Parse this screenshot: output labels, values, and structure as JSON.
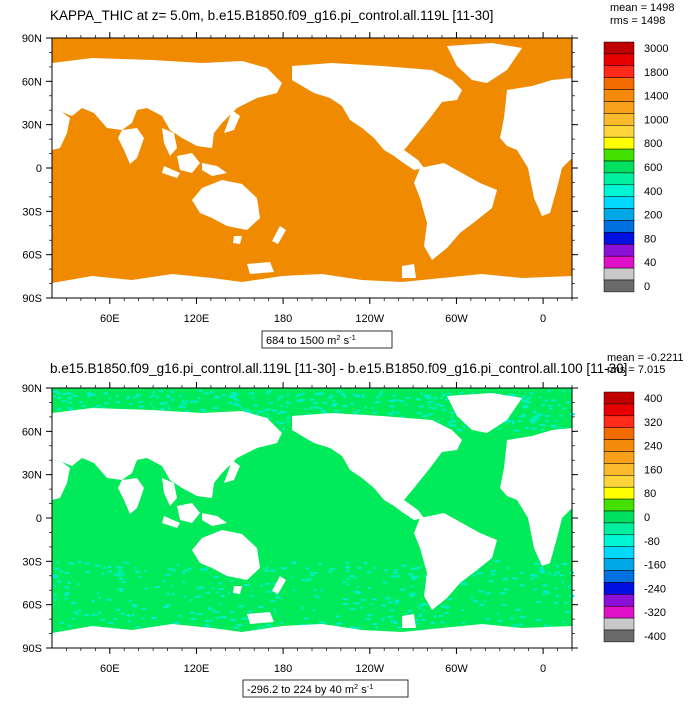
{
  "plots": [
    {
      "title": "KAPPA_THIC at z=   5.0m, b.e15.B1850.f09_g16.pi_control.all.119L [11-30]",
      "stat_mean": "mean = 1498",
      "stat_rms": "rms = 1498",
      "range_text": "684 to 1500 m",
      "range_unit_sup": "2",
      "range_unit_tail": " s",
      "range_unit_sup2": "-1",
      "colorbar_labels": [
        "3000",
        "1800",
        "1400",
        "1000",
        "800",
        "600",
        "400",
        "200",
        "80",
        "40",
        "0"
      ],
      "colorbar_colors": [
        "#c00000",
        "#e60000",
        "#ff2a1a",
        "#f26a00",
        "#f58a0a",
        "#f8a01a",
        "#fbba2c",
        "#fdd43a",
        "#ffff00",
        "#44e000",
        "#00e060",
        "#00f0a0",
        "#00f5d5",
        "#00d8ff",
        "#00a8e8",
        "#0070e0",
        "#0010e0",
        "#8a10d8",
        "#e010c8",
        "#c8c8c8",
        "#6a6a6a"
      ],
      "ocean_color": "#f08a00"
    },
    {
      "title": "b.e15.B1850.f09_g16.pi_control.all.119L [11-30] - b.e15.B1850.f09_g16.pi_control.all.100 [11-30]",
      "stat_mean": "mean = -0.2211",
      "stat_rms": "rms = 7.015",
      "range_text": "-296.2 to 224 by 40 m",
      "range_unit_sup": "2",
      "range_unit_tail": " s",
      "range_unit_sup2": "-1",
      "colorbar_labels": [
        "400",
        "320",
        "240",
        "160",
        "80",
        "0",
        "-80",
        "-160",
        "-240",
        "-320",
        "-400"
      ],
      "colorbar_colors": [
        "#c00000",
        "#e60000",
        "#ff2a1a",
        "#f26a00",
        "#f58a0a",
        "#f8a01a",
        "#fbba2c",
        "#fdd43a",
        "#ffff00",
        "#44e000",
        "#00e060",
        "#00f0a0",
        "#00f5d5",
        "#00d8ff",
        "#00a8e8",
        "#0070e0",
        "#0010e0",
        "#8a10d8",
        "#e010c8",
        "#c8c8c8",
        "#6a6a6a"
      ],
      "ocean_color": "#00ea5a",
      "noise_color": "#00f0c8"
    }
  ],
  "chart_data": [
    {
      "type": "heatmap",
      "title": "KAPPA_THIC at z=   5.0m, b.e15.B1850.f09_g16.pi_control.all.119L [11-30]",
      "projection": "cylindrical equidistant, centered 200E",
      "x_ticks": [
        "60E",
        "120E",
        "180",
        "120W",
        "60W",
        "0"
      ],
      "y_ticks": [
        "90N",
        "60N",
        "30N",
        "0",
        "30S",
        "60S",
        "90S"
      ],
      "mean": 1498,
      "rms": 1498,
      "min": 684,
      "max": 1500,
      "units": "m2 s-1",
      "levels": [
        0,
        40,
        80,
        200,
        400,
        600,
        800,
        1000,
        1400,
        1800,
        3000
      ],
      "dominant_value_range": "1400-1800"
    },
    {
      "type": "heatmap",
      "title": "b.e15.B1850.f09_g16.pi_control.all.119L [11-30] - b.e15.B1850.f09_g16.pi_control.all.100 [11-30]",
      "projection": "cylindrical equidistant, centered 200E",
      "x_ticks": [
        "60E",
        "120E",
        "180",
        "120W",
        "60W",
        "0"
      ],
      "y_ticks": [
        "90N",
        "60N",
        "30N",
        "0",
        "30S",
        "60S",
        "90S"
      ],
      "mean": -0.2211,
      "rms": 7.015,
      "min": -296.2,
      "max": 224,
      "interval": 40,
      "units": "m2 s-1",
      "levels": [
        -400,
        -320,
        -240,
        -160,
        -80,
        0,
        80,
        160,
        240,
        320,
        400
      ],
      "dominant_value_range": "0-80"
    }
  ]
}
